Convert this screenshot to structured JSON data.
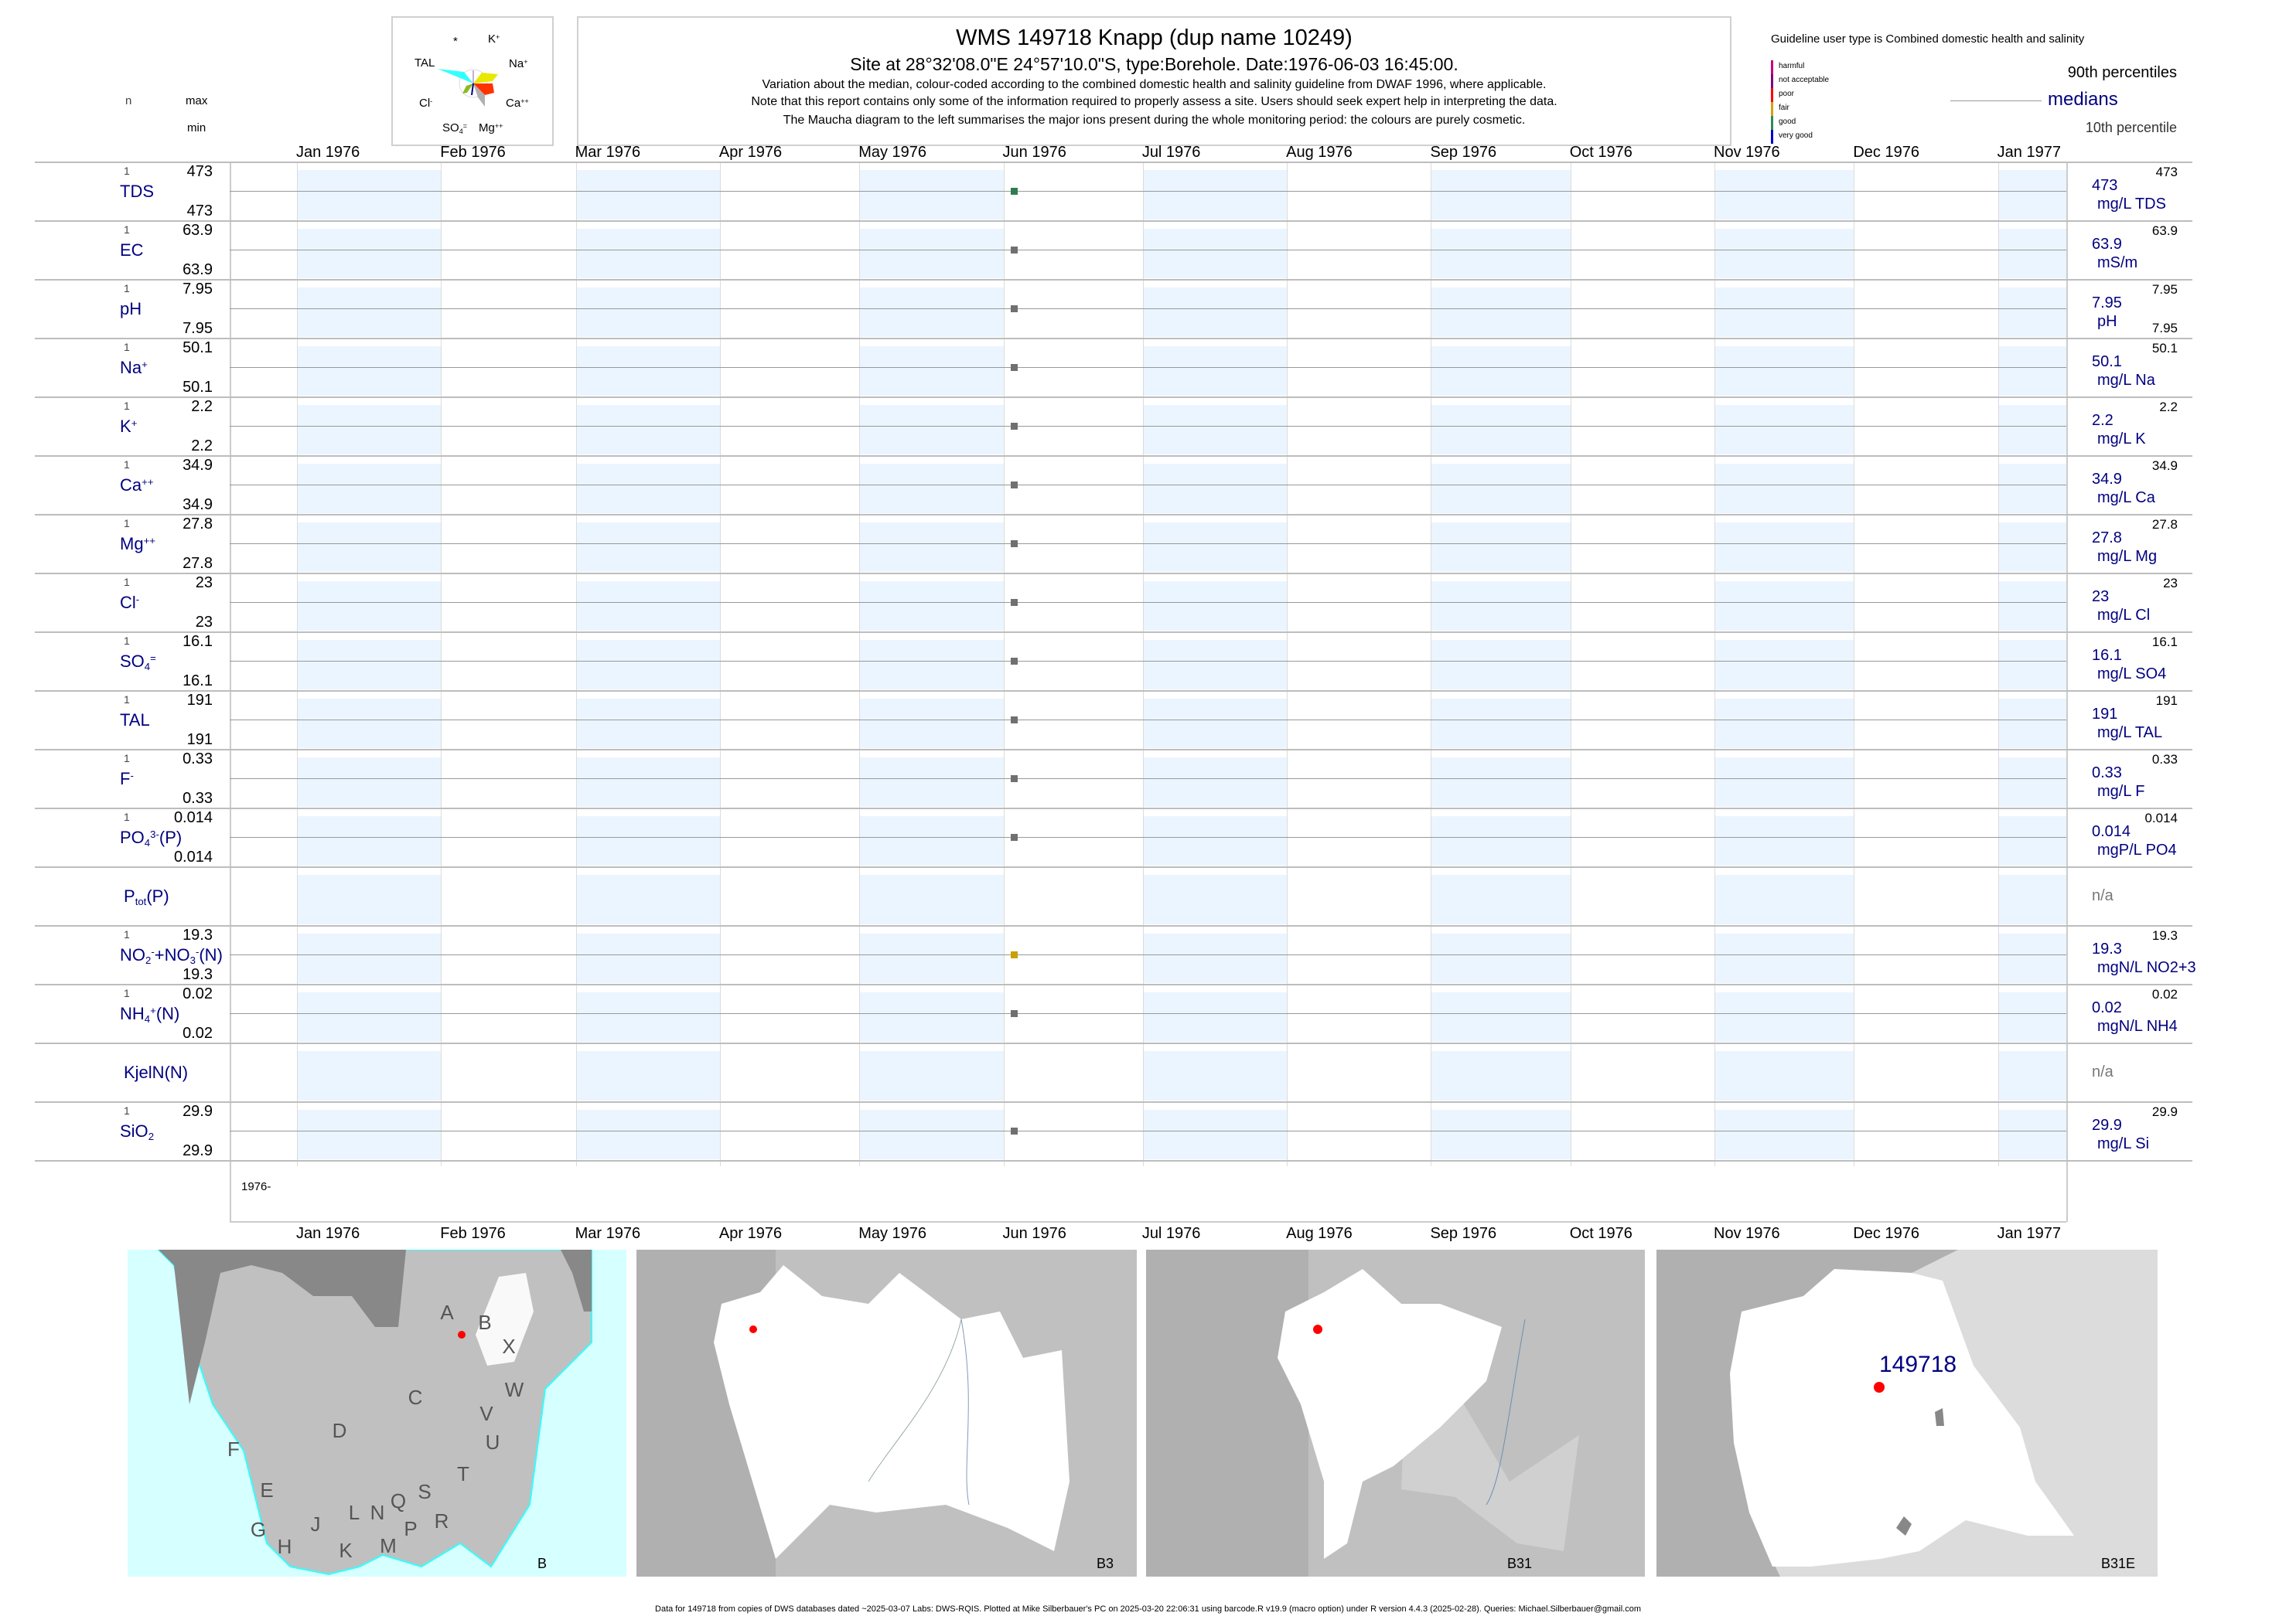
{
  "header": {
    "title": "WMS 149718  Knapp (dup name 10249)",
    "site_line": "Site at 28°32'08.0\"E 24°57'10.0\"S, type:Borehole. Date:1976-06-03 16:45:00.",
    "note1": "Variation about the median,  colour-coded according to the combined domestic health and salinity guideline from DWAF 1996, where applicable.",
    "note2": "Note that this report contains only some of the information required to properly assess a site. Users should seek expert help in interpreting the data.",
    "note3": "The Maucha diagram to the left summarises the major ions present during the whole monitoring period: the colours are purely cosmetic."
  },
  "maucha": {
    "labels": {
      "star": "*",
      "k": "K",
      "k_sup": "+",
      "na": "Na",
      "na_sup": "+",
      "ca": "Ca",
      "ca_sup": "++",
      "mg": "Mg",
      "mg_sup": "++",
      "so4": "SO",
      "so4_sub": "4",
      "so4_sup": "=",
      "cl": "Cl",
      "cl_sup": "-",
      "tal": "TAL"
    },
    "colors": {
      "tal": "#33ffff",
      "na": "#e8e800",
      "ca": "#ff3300",
      "mg": "#b0b0b0",
      "cl": "#88bb22",
      "so4": "#000080"
    }
  },
  "legend": {
    "guideline": "Guideline user type is Combined domestic health and salinity",
    "classes": [
      {
        "label": "harmful",
        "color": "#cc0077"
      },
      {
        "label": "not acceptable",
        "color": "#800080"
      },
      {
        "label": "poor",
        "color": "#ff0000"
      },
      {
        "label": "fair",
        "color": "#d4a017"
      },
      {
        "label": "good",
        "color": "#2e8b57"
      },
      {
        "label": "very good",
        "color": "#0000cd"
      }
    ],
    "p90": "90th percentiles",
    "medians": "medians",
    "p10": "10th percentile"
  },
  "columns": {
    "n": "n",
    "max": "max",
    "min": "min"
  },
  "chart_data": {
    "type": "scatter",
    "x_axis": {
      "start": "1976-01-01",
      "end": "1977-01-15",
      "tick_labels": [
        "Jan 1976",
        "Feb 1976",
        "Mar 1976",
        "Apr 1976",
        "May 1976",
        "Jun 1976",
        "Jul 1976",
        "Aug 1976",
        "Sep 1976",
        "Oct 1976",
        "Nov 1976",
        "Dec 1976",
        "Jan 1977"
      ],
      "tick_dates": [
        "1976-01-01",
        "1976-02-01",
        "1976-03-01",
        "1976-04-01",
        "1976-05-01",
        "1976-06-01",
        "1976-07-01",
        "1976-08-01",
        "1976-09-01",
        "1976-10-01",
        "1976-11-01",
        "1976-12-01",
        "1977-01-01"
      ]
    },
    "year_label": "1976-",
    "sample_date": "1976-06-03",
    "rows": [
      {
        "label": [
          {
            "t": "TDS"
          }
        ],
        "n": "1",
        "max": "473",
        "min": "473",
        "median": "473",
        "unit": "mg/L TDS",
        "p90": "473",
        "value": 473,
        "class": "good"
      },
      {
        "label": [
          {
            "t": "EC"
          }
        ],
        "n": "1",
        "max": "63.9",
        "min": "63.9",
        "median": "63.9",
        "unit": "mS/m",
        "p90": "63.9",
        "value": 63.9,
        "class": "none"
      },
      {
        "label": [
          {
            "t": "pH"
          }
        ],
        "n": "1",
        "max": "7.95",
        "min": "7.95",
        "median": "7.95",
        "unit": "pH",
        "p90": "7.95",
        "p10": "7.95",
        "value": 7.95,
        "class": "none"
      },
      {
        "label": [
          {
            "t": "Na"
          },
          {
            "t": "+",
            "s": "sup"
          }
        ],
        "n": "1",
        "max": "50.1",
        "min": "50.1",
        "median": "50.1",
        "unit": "mg/L Na",
        "p90": "50.1",
        "value": 50.1,
        "class": "none"
      },
      {
        "label": [
          {
            "t": "K"
          },
          {
            "t": "+",
            "s": "sup"
          }
        ],
        "n": "1",
        "max": "2.2",
        "min": "2.2",
        "median": "2.2",
        "unit": "mg/L K",
        "p90": "2.2",
        "value": 2.2,
        "class": "none"
      },
      {
        "label": [
          {
            "t": "Ca"
          },
          {
            "t": "++",
            "s": "sup"
          }
        ],
        "n": "1",
        "max": "34.9",
        "min": "34.9",
        "median": "34.9",
        "unit": "mg/L Ca",
        "p90": "34.9",
        "value": 34.9,
        "class": "none"
      },
      {
        "label": [
          {
            "t": "Mg"
          },
          {
            "t": "++",
            "s": "sup"
          }
        ],
        "n": "1",
        "max": "27.8",
        "min": "27.8",
        "median": "27.8",
        "unit": "mg/L Mg",
        "p90": "27.8",
        "value": 27.8,
        "class": "none"
      },
      {
        "label": [
          {
            "t": "Cl"
          },
          {
            "t": "-",
            "s": "sup"
          }
        ],
        "n": "1",
        "max": "23",
        "min": "23",
        "median": "23",
        "unit": "mg/L Cl",
        "p90": "23",
        "value": 23,
        "class": "none"
      },
      {
        "label": [
          {
            "t": "SO"
          },
          {
            "t": "4",
            "s": "sub"
          },
          {
            "t": "=",
            "s": "sup"
          }
        ],
        "n": "1",
        "max": "16.1",
        "min": "16.1",
        "median": "16.1",
        "unit": "mg/L SO4",
        "p90": "16.1",
        "value": 16.1,
        "class": "none"
      },
      {
        "label": [
          {
            "t": "TAL"
          }
        ],
        "n": "1",
        "max": "191",
        "min": "191",
        "median": "191",
        "unit": "mg/L TAL",
        "p90": "191",
        "value": 191,
        "class": "none"
      },
      {
        "label": [
          {
            "t": "F"
          },
          {
            "t": "-",
            "s": "sup"
          }
        ],
        "n": "1",
        "max": "0.33",
        "min": "0.33",
        "median": "0.33",
        "unit": "mg/L F",
        "p90": "0.33",
        "value": 0.33,
        "class": "none"
      },
      {
        "label": [
          {
            "t": "PO"
          },
          {
            "t": "4",
            "s": "sub"
          },
          {
            "t": "3-",
            "s": "sup"
          },
          {
            "t": "(P)"
          }
        ],
        "n": "1",
        "max": "0.014",
        "min": "0.014",
        "median": "0.014",
        "unit": "mgP/L PO4",
        "p90": "0.014",
        "value": 0.014,
        "class": "none"
      },
      {
        "label": [
          {
            "t": "P"
          },
          {
            "t": "tot",
            "s": "sub"
          },
          {
            "t": "(P)"
          }
        ],
        "median": "n/a"
      },
      {
        "label": [
          {
            "t": "NO"
          },
          {
            "t": "2",
            "s": "sub"
          },
          {
            "t": "-",
            "s": "sup"
          },
          {
            "t": "+NO"
          },
          {
            "t": "3",
            "s": "sub"
          },
          {
            "t": "-",
            "s": "sup"
          },
          {
            "t": "(N)"
          }
        ],
        "n": "1",
        "max": "19.3",
        "min": "19.3",
        "median": "19.3",
        "unit": "mgN/L NO2+3",
        "p90": "19.3",
        "value": 19.3,
        "class": "fair"
      },
      {
        "label": [
          {
            "t": "NH"
          },
          {
            "t": "4",
            "s": "sub"
          },
          {
            "t": "+",
            "s": "sup"
          },
          {
            "t": "(N)"
          }
        ],
        "n": "1",
        "max": "0.02",
        "min": "0.02",
        "median": "0.02",
        "unit": "mgN/L NH4",
        "p90": "0.02",
        "value": 0.02,
        "class": "none"
      },
      {
        "label": [
          {
            "t": "KjelN(N)"
          }
        ],
        "median": "n/a"
      },
      {
        "label": [
          {
            "t": "SiO"
          },
          {
            "t": "2",
            "s": "sub"
          }
        ],
        "n": "1",
        "max": "29.9",
        "min": "29.9",
        "median": "29.9",
        "unit": "mg/L Si",
        "p90": "29.9",
        "value": 29.9,
        "class": "none"
      }
    ],
    "point_colors": {
      "good": "#2e7d4f",
      "fair": "#c8a000",
      "none": "#707070"
    },
    "grid": true
  },
  "maps": [
    {
      "name": "B",
      "letters": [
        "A",
        "B",
        "X",
        "W",
        "C",
        "V",
        "D",
        "U",
        "F",
        "T",
        "E",
        "S",
        "Q",
        "R",
        "N",
        "L",
        "J",
        "G",
        "H",
        "K",
        "M",
        "P"
      ]
    },
    {
      "name": "B3"
    },
    {
      "name": "B31"
    },
    {
      "name": "B31E",
      "site_label": "149718"
    }
  ],
  "footer": "Data for 149718 from copies of DWS databases dated ~2025-03-07 Labs: DWS-RQIS. Plotted at Mike Silberbauer's PC on 2025-03-20 22:06:31 using barcode.R v19.9 (macro option) under R version 4.4.3 (2025-02-28). Queries: Michael.Silberbauer@gmail.com"
}
